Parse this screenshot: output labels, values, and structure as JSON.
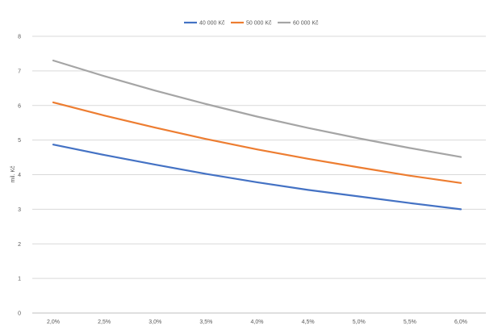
{
  "chart_data": {
    "type": "line",
    "x": [
      "2,0%",
      "2,5%",
      "3,0%",
      "3,5%",
      "4,0%",
      "4,5%",
      "5,0%",
      "5,5%",
      "6,0%"
    ],
    "series": [
      {
        "name": "40 000 Kč",
        "color": "#4472C4",
        "values": [
          4.87,
          4.57,
          4.29,
          4.02,
          3.78,
          3.56,
          3.37,
          3.18,
          3.0
        ]
      },
      {
        "name": "50 000 Kč",
        "color": "#ED7D31",
        "values": [
          6.09,
          5.71,
          5.36,
          5.03,
          4.73,
          4.46,
          4.21,
          3.97,
          3.76
        ]
      },
      {
        "name": "60 000 Kč",
        "color": "#A5A5A5",
        "values": [
          7.3,
          6.85,
          6.43,
          6.04,
          5.68,
          5.35,
          5.05,
          4.77,
          4.51
        ]
      }
    ],
    "ylabel": "mil. Kč",
    "ylim": [
      0,
      8
    ],
    "yticks": [
      "0",
      "1",
      "2",
      "3",
      "4",
      "5",
      "6",
      "7",
      "8"
    ],
    "grid": true,
    "legend_position": "top-center"
  }
}
